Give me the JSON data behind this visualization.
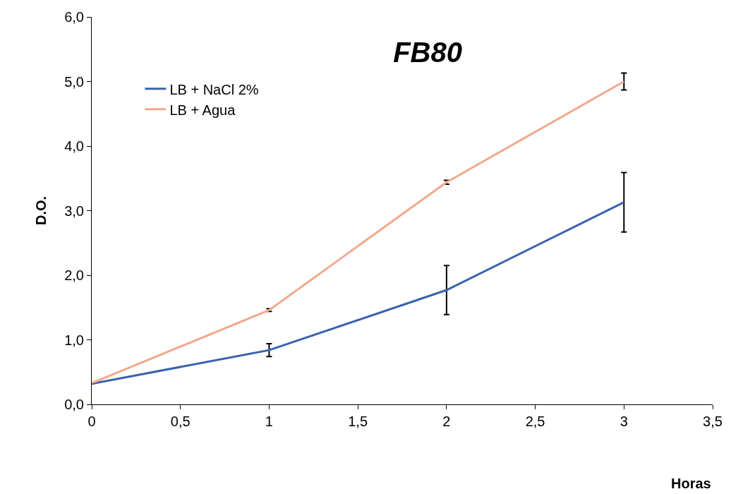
{
  "chart_data": {
    "type": "line",
    "title": "FB80",
    "xlabel": "Horas",
    "ylabel": "D.O.",
    "x": [
      0,
      1,
      2,
      3
    ],
    "series": [
      {
        "name": "LB + NaCl 2%",
        "color": "#3a62ae",
        "values": [
          0.32,
          0.84,
          1.77,
          3.13
        ],
        "errors": [
          null,
          0.1,
          0.38,
          0.46
        ]
      },
      {
        "name": "LB + Agua",
        "color": "#f2a98c",
        "values": [
          0.33,
          1.46,
          3.44,
          5.0
        ],
        "errors": [
          null,
          0.02,
          0.03,
          0.13
        ]
      }
    ],
    "xlim": [
      0,
      3.5
    ],
    "xticks": [
      0,
      {
        "value": 0.5,
        "label": "0,5"
      },
      1,
      {
        "value": 1.5,
        "label": "1,5"
      },
      2,
      {
        "value": 2.5,
        "label": "2,5"
      },
      3,
      {
        "value": 3.5,
        "label": "3,5"
      }
    ],
    "ylim": [
      0,
      6
    ],
    "yticks": [
      {
        "value": 0,
        "label": "0,0"
      },
      {
        "value": 1,
        "label": "1,0"
      },
      {
        "value": 2,
        "label": "2,0"
      },
      {
        "value": 3,
        "label": "3,0"
      },
      {
        "value": 4,
        "label": "4,0"
      },
      {
        "value": 5,
        "label": "5,0"
      },
      {
        "value": 6,
        "label": "6,0"
      }
    ],
    "legend": "top left",
    "marker": "none",
    "line_style": "solid"
  }
}
